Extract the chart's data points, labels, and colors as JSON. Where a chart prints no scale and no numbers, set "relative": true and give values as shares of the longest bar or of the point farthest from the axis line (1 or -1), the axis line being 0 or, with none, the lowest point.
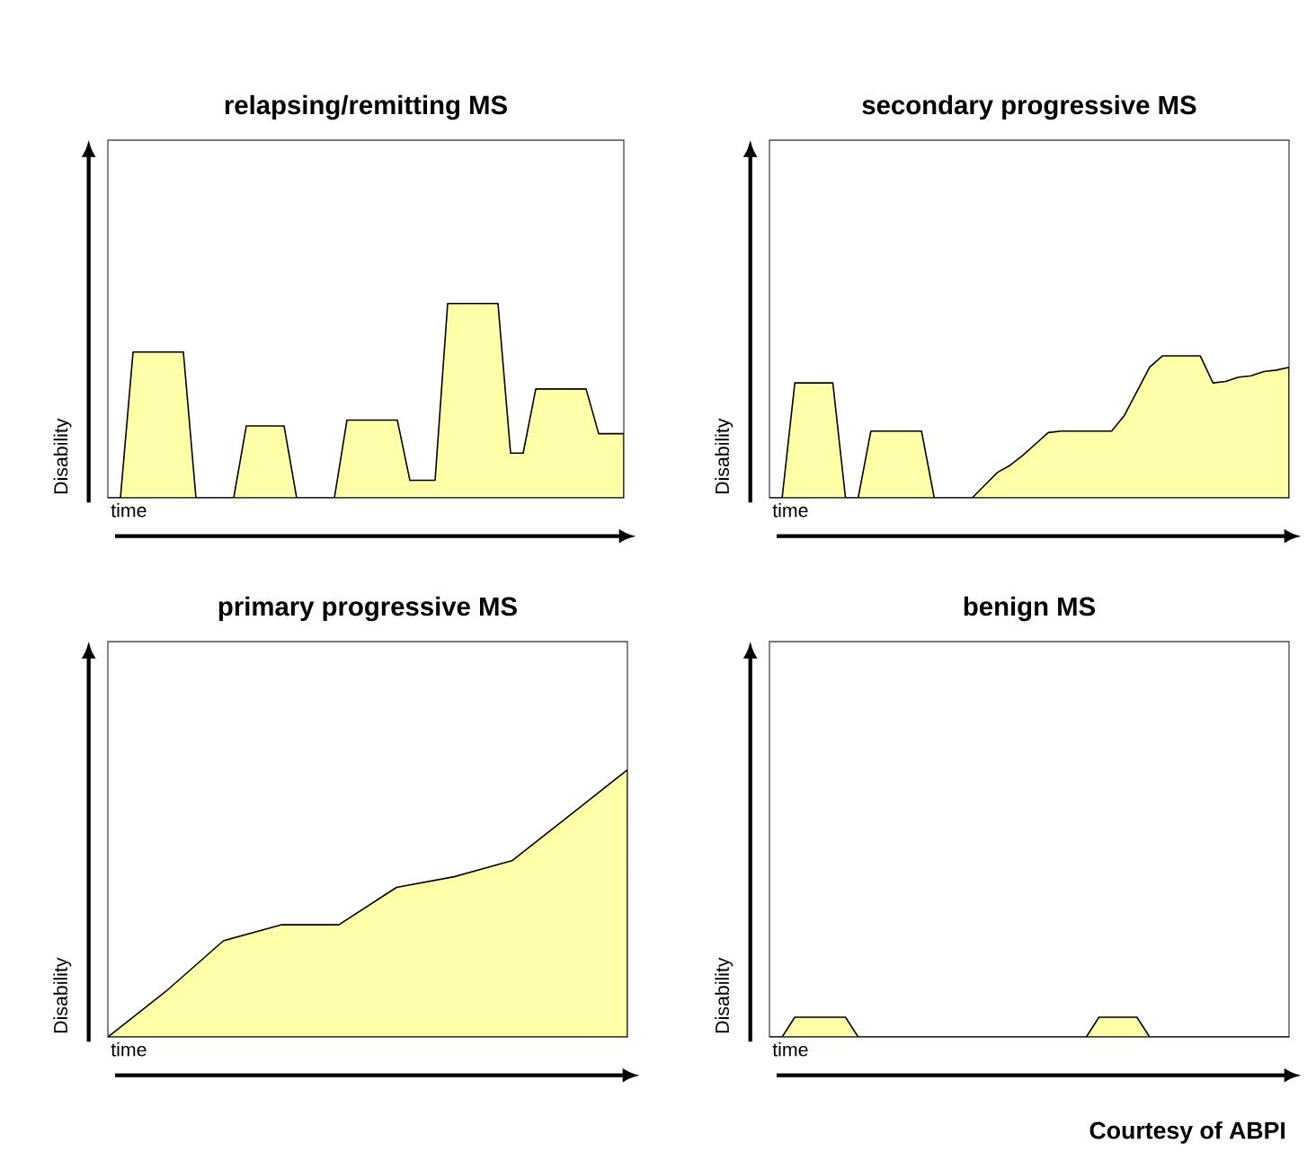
{
  "chart_data": [
    {
      "type": "area",
      "title": "relapsing/remitting MS",
      "xlabel": "time",
      "ylabel": "Disability",
      "relative": true,
      "categories": [
        null,
        null,
        null,
        null,
        null,
        null,
        null,
        null,
        null,
        null,
        null,
        null,
        null,
        null,
        null,
        null,
        null,
        null,
        null,
        null,
        null,
        null,
        null,
        null,
        null,
        null,
        null,
        null,
        null,
        null,
        null,
        null,
        null,
        null,
        null,
        null,
        null,
        null,
        null,
        null,
        null,
        null
      ],
      "series": [
        {
          "color": "#ffffaa",
          "values": [
            0,
            0,
            0.75,
            0.75,
            0.75,
            0.75,
            0.75,
            0,
            0,
            0,
            0,
            0.37,
            0.37,
            0.37,
            0.37,
            0,
            0,
            0,
            0,
            0.4,
            0.4,
            0.4,
            0.4,
            0.4,
            0.09,
            0.09,
            0.09,
            1,
            1,
            1,
            1,
            1,
            0.23,
            0.23,
            0.56,
            0.56,
            0.56,
            0.56,
            0.56,
            0.33,
            0.33,
            0.33
          ]
        }
      ]
    },
    {
      "type": "area",
      "title": "secondary progressive MS",
      "xlabel": "time",
      "ylabel": "Disability",
      "relative": true,
      "categories": [
        null,
        null,
        null,
        null,
        null,
        null,
        null,
        null,
        null,
        null,
        null,
        null,
        null,
        null,
        null,
        null,
        null,
        null,
        null,
        null,
        null,
        null,
        null,
        null,
        null,
        null,
        null,
        null,
        null,
        null,
        null,
        null,
        null,
        null,
        null,
        null,
        null,
        null,
        null,
        null,
        null,
        null
      ],
      "series": [
        {
          "color": "#ffffaa",
          "values": [
            0,
            0,
            0.81,
            0.81,
            0.81,
            0.81,
            0,
            0,
            0.47,
            0.47,
            0.47,
            0.47,
            0.47,
            0,
            0,
            0,
            0,
            0.09,
            0.18,
            0.23,
            0.3,
            0.38,
            0.46,
            0.47,
            0.47,
            0.47,
            0.47,
            0.47,
            0.58,
            0.75,
            0.92,
            1,
            1,
            1,
            1,
            0.81,
            0.82,
            0.85,
            0.86,
            0.89,
            0.9,
            0.92
          ]
        }
      ]
    },
    {
      "type": "area",
      "title": "primary progressive MS",
      "xlabel": "time",
      "ylabel": "Disability",
      "relative": true,
      "categories": [
        null,
        null,
        null,
        null,
        null,
        null,
        null,
        null,
        null,
        null
      ],
      "series": [
        {
          "color": "#ffffaa",
          "values": [
            0,
            0.17,
            0.36,
            0.42,
            0.42,
            0.56,
            0.6,
            0.66,
            0.83,
            1
          ]
        }
      ]
    },
    {
      "type": "area",
      "title": "benign MS",
      "xlabel": "time",
      "ylabel": "Disability",
      "relative": true,
      "categories": [
        null,
        null,
        null,
        null,
        null,
        null,
        null,
        null,
        null,
        null,
        null,
        null,
        null,
        null,
        null,
        null,
        null,
        null,
        null,
        null,
        null,
        null,
        null,
        null,
        null,
        null,
        null,
        null,
        null,
        null,
        null,
        null,
        null,
        null,
        null,
        null,
        null,
        null,
        null,
        null,
        null,
        null
      ],
      "series": [
        {
          "color": "#ffffaa",
          "values": [
            0,
            0,
            1,
            1,
            1,
            1,
            1,
            0,
            0,
            0,
            0,
            0,
            0,
            0,
            0,
            0,
            0,
            0,
            0,
            0,
            0,
            0,
            0,
            0,
            0,
            0,
            1,
            1,
            1,
            1,
            0,
            0,
            0,
            0,
            0,
            0,
            0,
            0,
            0,
            0,
            0,
            0
          ]
        }
      ],
      "annotations": [
        "Courtesy of ABPI"
      ]
    }
  ]
}
